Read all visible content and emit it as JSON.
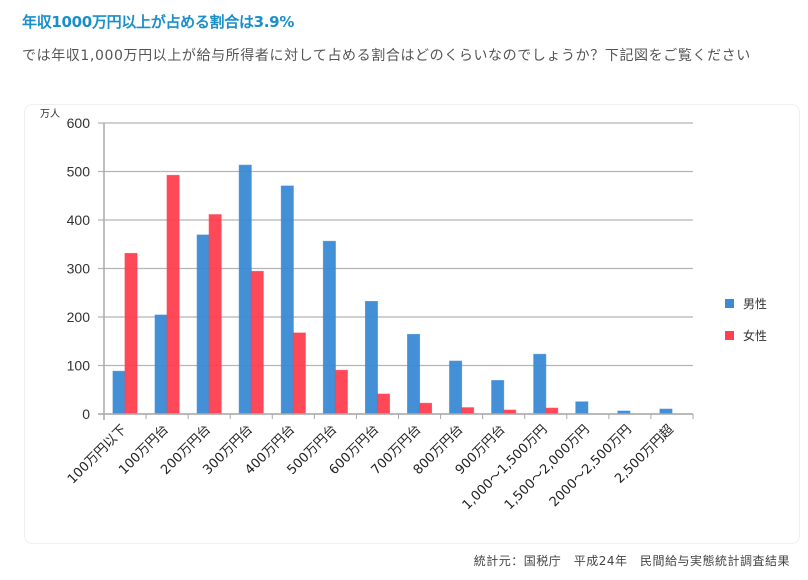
{
  "article": {
    "heading": "年収1000万円以上が占める割合は3.9%",
    "intro": "では年収1,000万円以上が給与所得者に対して占める割合はどのくらいなのでしょうか？下記図をご覧ください",
    "source": "統計元：国税庁　平成24年　民間給与実態統計調査結果"
  },
  "chart_data": {
    "type": "bar",
    "title": "",
    "xlabel": "",
    "ylabel": "万人",
    "ylim": [
      0,
      600
    ],
    "yticks": [
      0,
      100,
      200,
      300,
      400,
      500,
      600
    ],
    "grid": true,
    "legend_position": "right",
    "categories": [
      "100万円以下",
      "100万円台",
      "200万円台",
      "300万円台",
      "400万円台",
      "500万円台",
      "600万円台",
      "700万円台",
      "800万円台",
      "900万円台",
      "1,000〜1,500万円",
      "1,500〜2,000万円",
      "2000〜2,500万円",
      "2,500万円超"
    ],
    "series": [
      {
        "name": "男性",
        "color": "#3a8ad4",
        "values": [
          88,
          204,
          369,
          513,
          470,
          356,
          232,
          164,
          109,
          69,
          123,
          25,
          6,
          10
        ]
      },
      {
        "name": "女性",
        "color": "#ff3f50",
        "values": [
          331,
          492,
          411,
          294,
          167,
          90,
          41,
          22,
          13,
          8,
          12,
          0,
          0,
          0
        ]
      }
    ]
  }
}
